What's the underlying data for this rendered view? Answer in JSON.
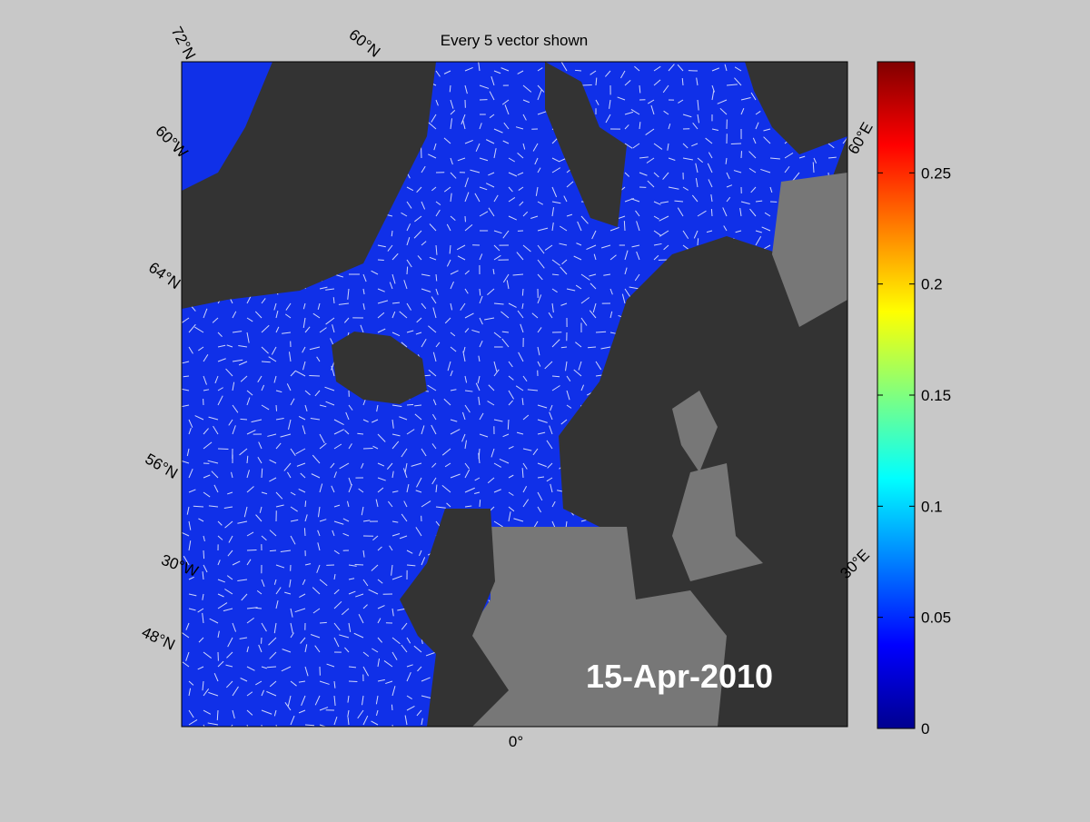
{
  "map": {
    "title": "Every 5 vector shown",
    "date_label": "15-Apr-2010",
    "graticule_labels": [
      "72°N",
      "60°N",
      "60°W",
      "64°N",
      "56°N",
      "30°W",
      "48°N",
      "0°",
      "60°E",
      "30°E"
    ],
    "colorbar": {
      "colormap": "jet",
      "lim": [
        0,
        0.3
      ],
      "ticks": [
        0,
        0.05,
        0.1,
        0.15,
        0.2,
        0.25
      ]
    }
  }
}
